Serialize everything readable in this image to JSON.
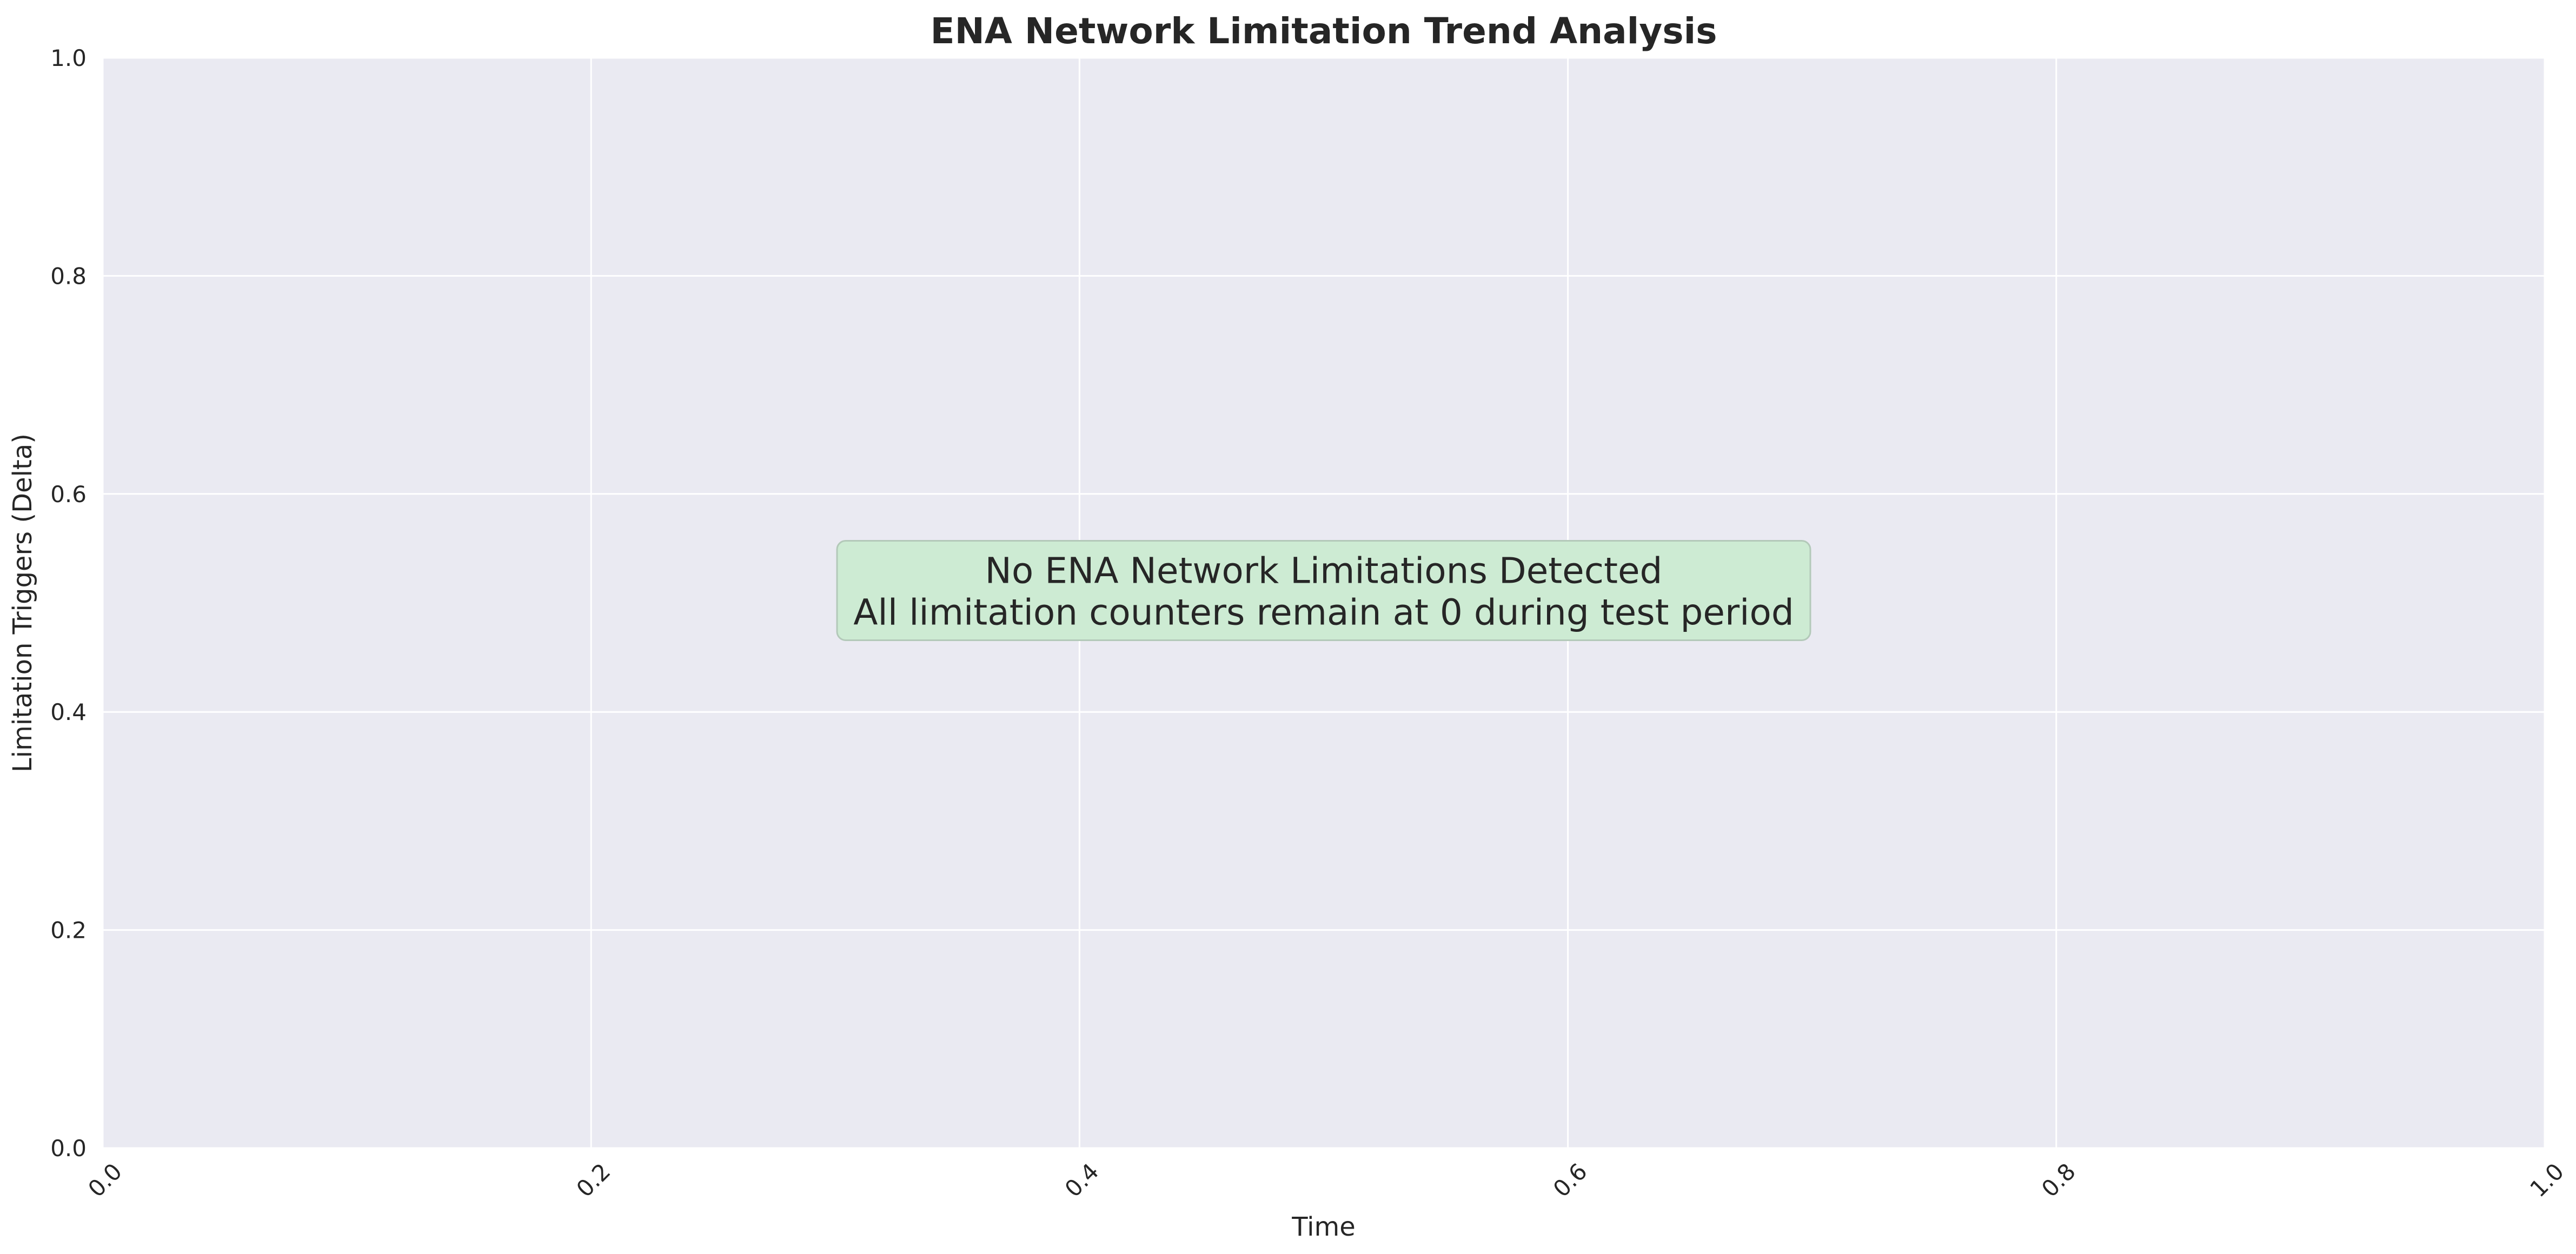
{
  "chart_data": {
    "type": "line",
    "title": "ENA Network Limitation Trend Analysis",
    "xlabel": "Time",
    "ylabel": "Limitation Triggers (Delta)",
    "xlim": [
      0.0,
      1.0
    ],
    "ylim": [
      0.0,
      1.0
    ],
    "x_ticks": [
      "0.0",
      "0.2",
      "0.4",
      "0.6",
      "0.8",
      "1.0"
    ],
    "y_ticks": [
      "0.0",
      "0.2",
      "0.4",
      "0.6",
      "0.8",
      "1.0"
    ],
    "x_tick_rotation": -45,
    "grid": true,
    "series": [],
    "annotation": {
      "lines": [
        "No ENA Network Limitations Detected",
        "All limitation counters remain at 0 during test period"
      ],
      "x": 0.5,
      "y": 0.5
    },
    "colors": {
      "plot_background": "#eaeaf2",
      "grid": "#ffffff",
      "annotation_fill": "#cdebd3",
      "annotation_border": "#b3c9b9",
      "text": "#262626"
    }
  }
}
